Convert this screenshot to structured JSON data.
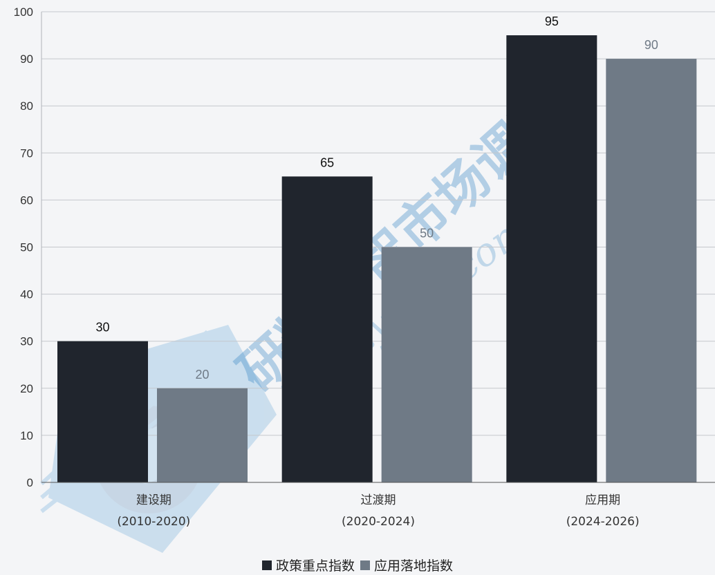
{
  "chart_data": {
    "type": "bar",
    "categories": [
      [
        "建设期",
        "(2010-2020)"
      ],
      [
        "过渡期",
        "(2020-2024)"
      ],
      [
        "应用期",
        "(2024-2026)"
      ]
    ],
    "series": [
      {
        "name": "政策重点指数",
        "values": [
          30,
          65,
          95
        ],
        "color": "#20252d"
      },
      {
        "name": "应用落地指数",
        "values": [
          20,
          50,
          90
        ],
        "color": "#6f7a86"
      }
    ],
    "ylim": [
      0,
      100
    ],
    "yticks": [
      0,
      10,
      20,
      30,
      40,
      50,
      60,
      70,
      80,
      90,
      100
    ],
    "grid": true,
    "legend_position": "bottom-center"
  },
  "watermark": {
    "text": "研精毕智市场调研",
    "url": "www.yjbzr.com"
  }
}
